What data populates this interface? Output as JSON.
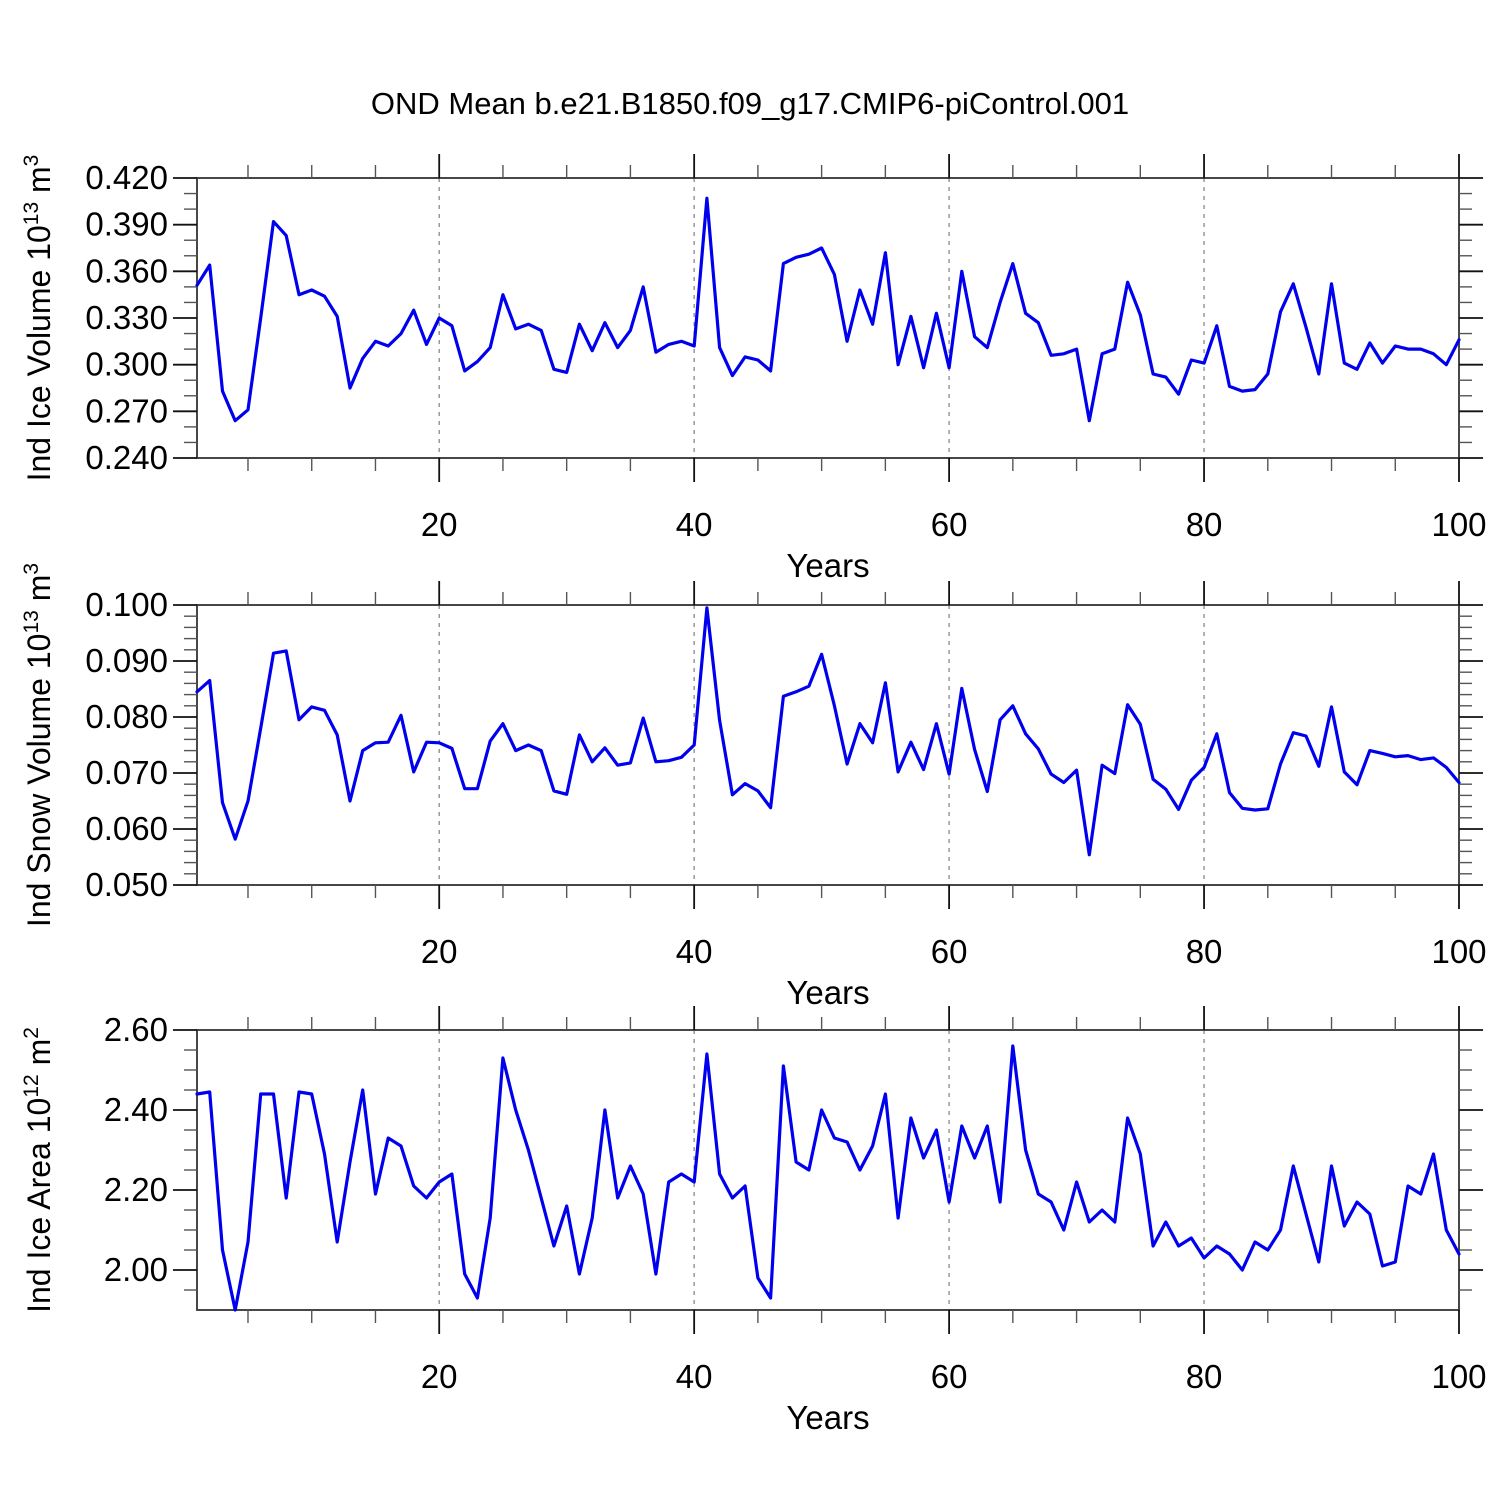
{
  "title": "OND Mean b.e21.B1850.f09_g17.CMIP6-piControl.001",
  "xlabel": "Years",
  "line_color": "#0000EE",
  "grid_color": "#888888",
  "frame_color": "#333333",
  "chart_data": [
    {
      "id": "ice-volume",
      "type": "line",
      "title": "OND Mean b.e21.B1850.f09_g17.CMIP6-piControl.001",
      "xlabel": "Years",
      "ylabel": "Ind Ice Volume 10^13 m^3",
      "ylabel_parts": [
        {
          "t": "Ind Ice Volume 10"
        },
        {
          "t": "13",
          "sup": true
        },
        {
          "t": " m"
        },
        {
          "t": "3",
          "sup": true
        }
      ],
      "x_range": [
        1,
        100
      ],
      "x_major_ticks": [
        20,
        40,
        60,
        80,
        100
      ],
      "x_minor_step": 5,
      "gridlines_x": [
        20,
        40,
        60,
        80
      ],
      "ylim": [
        0.24,
        0.42
      ],
      "y_major_step": 0.03,
      "y_minor_step": 0.01,
      "y_decimals": 3,
      "values": [
        0.351,
        0.364,
        0.283,
        0.264,
        0.271,
        0.33,
        0.392,
        0.383,
        0.345,
        0.348,
        0.344,
        0.331,
        0.285,
        0.304,
        0.315,
        0.312,
        0.32,
        0.335,
        0.313,
        0.33,
        0.325,
        0.296,
        0.302,
        0.311,
        0.345,
        0.323,
        0.326,
        0.322,
        0.297,
        0.295,
        0.326,
        0.309,
        0.327,
        0.311,
        0.322,
        0.35,
        0.308,
        0.313,
        0.315,
        0.312,
        0.407,
        0.311,
        0.293,
        0.305,
        0.303,
        0.296,
        0.365,
        0.369,
        0.371,
        0.375,
        0.358,
        0.315,
        0.348,
        0.326,
        0.372,
        0.3,
        0.331,
        0.298,
        0.333,
        0.298,
        0.36,
        0.318,
        0.311,
        0.34,
        0.365,
        0.333,
        0.327,
        0.306,
        0.307,
        0.31,
        0.264,
        0.307,
        0.31,
        0.353,
        0.332,
        0.294,
        0.292,
        0.281,
        0.303,
        0.301,
        0.325,
        0.286,
        0.283,
        0.284,
        0.294,
        0.334,
        0.352,
        0.324,
        0.294,
        0.352,
        0.301,
        0.297,
        0.314,
        0.301,
        0.312,
        0.31,
        0.31,
        0.307,
        0.3,
        0.316
      ]
    },
    {
      "id": "snow-volume",
      "type": "line",
      "title": "",
      "xlabel": "Years",
      "ylabel": "Ind Snow Volume 10^13 m^3",
      "ylabel_parts": [
        {
          "t": "Ind Snow Volume 10"
        },
        {
          "t": "13",
          "sup": true
        },
        {
          "t": " m"
        },
        {
          "t": "3",
          "sup": true
        }
      ],
      "x_range": [
        1,
        100
      ],
      "x_major_ticks": [
        20,
        40,
        60,
        80,
        100
      ],
      "x_minor_step": 5,
      "gridlines_x": [
        20,
        40,
        60,
        80
      ],
      "ylim": [
        0.05,
        0.1
      ],
      "y_major_step": 0.01,
      "y_minor_step": 0.002,
      "y_decimals": 3,
      "values": [
        0.0845,
        0.0865,
        0.0647,
        0.0582,
        0.065,
        0.078,
        0.0914,
        0.0918,
        0.0795,
        0.0818,
        0.0812,
        0.0768,
        0.065,
        0.074,
        0.0754,
        0.0755,
        0.0803,
        0.0702,
        0.0755,
        0.0754,
        0.0744,
        0.0672,
        0.0672,
        0.0757,
        0.0788,
        0.074,
        0.075,
        0.074,
        0.0668,
        0.0662,
        0.0768,
        0.072,
        0.0745,
        0.0714,
        0.0718,
        0.0798,
        0.072,
        0.0722,
        0.0728,
        0.075,
        0.0995,
        0.0794,
        0.0661,
        0.0681,
        0.0668,
        0.0638,
        0.0837,
        0.0845,
        0.0855,
        0.0912,
        0.082,
        0.0716,
        0.0788,
        0.0754,
        0.0861,
        0.0702,
        0.0755,
        0.0706,
        0.0788,
        0.0698,
        0.0851,
        0.0742,
        0.0667,
        0.0795,
        0.082,
        0.077,
        0.0743,
        0.0698,
        0.0683,
        0.0705,
        0.0554,
        0.0714,
        0.0699,
        0.0822,
        0.0787,
        0.0689,
        0.0671,
        0.0635,
        0.0687,
        0.071,
        0.077,
        0.0665,
        0.0637,
        0.0634,
        0.0636,
        0.0716,
        0.0772,
        0.0766,
        0.0712,
        0.0818,
        0.0702,
        0.0679,
        0.074,
        0.0735,
        0.0729,
        0.0731,
        0.0724,
        0.0727,
        0.071,
        0.0683
      ]
    },
    {
      "id": "ice-area",
      "type": "line",
      "title": "",
      "xlabel": "Years",
      "ylabel": "Ind Ice Area 10^12 m^2",
      "ylabel_parts": [
        {
          "t": "Ind Ice Area 10"
        },
        {
          "t": "12",
          "sup": true
        },
        {
          "t": " m"
        },
        {
          "t": "2",
          "sup": true
        }
      ],
      "x_range": [
        1,
        100
      ],
      "x_major_ticks": [
        20,
        40,
        60,
        80,
        100
      ],
      "x_minor_step": 5,
      "gridlines_x": [
        20,
        40,
        60,
        80
      ],
      "ylim": [
        1.9,
        2.6
      ],
      "y_major_step": 0.2,
      "y_minor_step": 0.05,
      "y_decimals": 2,
      "values": [
        2.44,
        2.445,
        2.05,
        1.9,
        2.07,
        2.44,
        2.44,
        2.18,
        2.445,
        2.44,
        2.29,
        2.07,
        2.27,
        2.45,
        2.19,
        2.33,
        2.31,
        2.21,
        2.18,
        2.22,
        2.24,
        1.99,
        1.93,
        2.13,
        2.53,
        2.4,
        2.3,
        2.18,
        2.06,
        2.16,
        1.99,
        2.13,
        2.4,
        2.18,
        2.26,
        2.19,
        1.99,
        2.22,
        2.24,
        2.22,
        2.54,
        2.24,
        2.18,
        2.21,
        1.98,
        1.93,
        2.51,
        2.27,
        2.25,
        2.4,
        2.33,
        2.32,
        2.25,
        2.31,
        2.44,
        2.13,
        2.38,
        2.28,
        2.35,
        2.17,
        2.36,
        2.28,
        2.36,
        2.17,
        2.56,
        2.3,
        2.19,
        2.17,
        2.1,
        2.22,
        2.12,
        2.15,
        2.12,
        2.38,
        2.29,
        2.06,
        2.12,
        2.06,
        2.08,
        2.03,
        2.06,
        2.04,
        2.0,
        2.07,
        2.05,
        2.1,
        2.26,
        2.14,
        2.02,
        2.26,
        2.11,
        2.17,
        2.14,
        2.01,
        2.02,
        2.21,
        2.19,
        2.29,
        2.1,
        2.04
      ]
    }
  ]
}
